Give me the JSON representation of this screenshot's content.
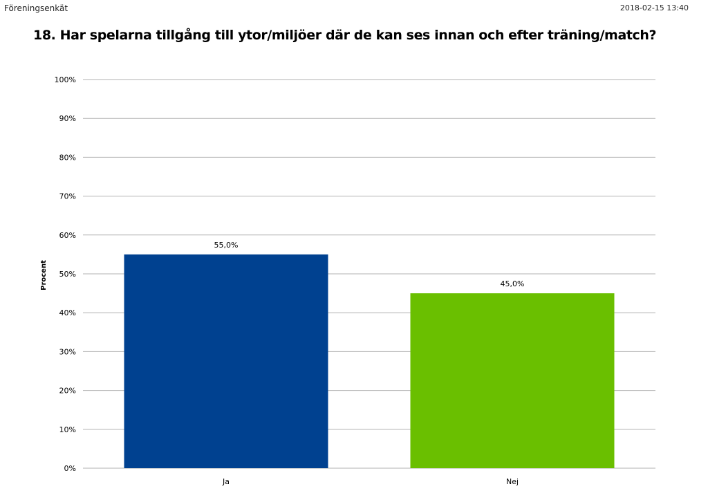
{
  "header": {
    "survey_name": "Föreningsenkät",
    "timestamp": "2018-02-15 13:40"
  },
  "question_title": "18. Har spelarna tillgång till ytor/miljöer där de kan ses innan och efter träning/match?",
  "chart_data": {
    "type": "bar",
    "title": "",
    "xlabel": "",
    "ylabel": "Procent",
    "categories": [
      "Ja",
      "Nej"
    ],
    "values": [
      55.0,
      45.0
    ],
    "value_labels": [
      "55,0%",
      "45,0%"
    ],
    "bar_colors": [
      "#004190",
      "#6abf00"
    ],
    "ylim": [
      0,
      100
    ],
    "yticks": [
      0,
      10,
      20,
      30,
      40,
      50,
      60,
      70,
      80,
      90,
      100
    ],
    "ytick_labels": [
      "0%",
      "10%",
      "20%",
      "30%",
      "40%",
      "50%",
      "60%",
      "70%",
      "80%",
      "90%",
      "100%"
    ],
    "grid": true,
    "legend": "none"
  }
}
